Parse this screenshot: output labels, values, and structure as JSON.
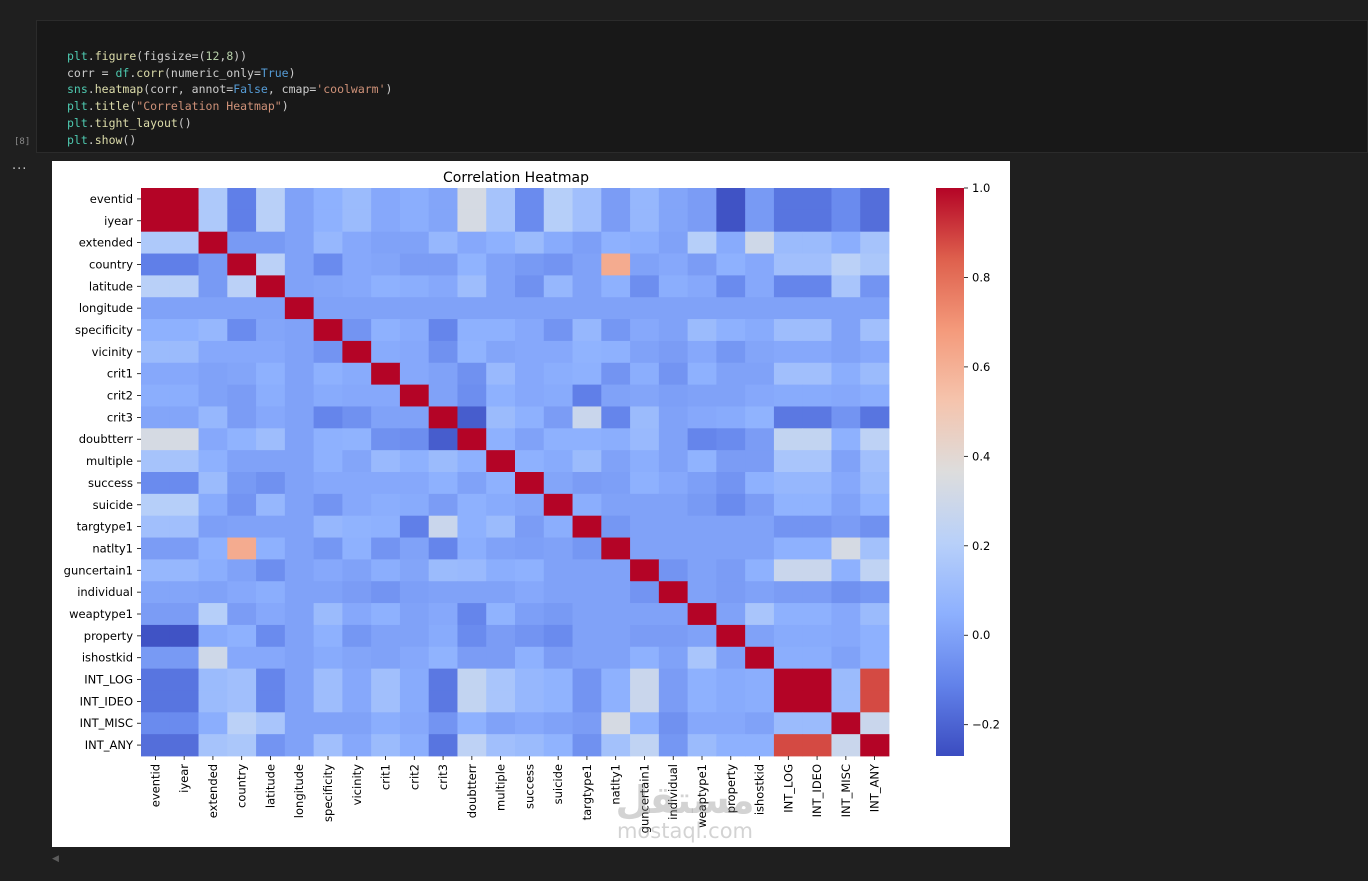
{
  "notebook": {
    "execution_count": "[8]",
    "output_marker": "...",
    "code_lines": [
      "plt.figure(figsize=(12,8))",
      "corr = df.corr(numeric_only=True)",
      "sns.heatmap(corr, annot=False, cmap='coolwarm')",
      "plt.title(\"Correlation Heatmap\")",
      "plt.tight_layout()",
      "plt.show()"
    ]
  },
  "watermark": {
    "logo": "مستقل",
    "text": "mostaql.com"
  },
  "chart_data": {
    "type": "heatmap",
    "title": "Correlation Heatmap",
    "xlabel": "",
    "ylabel": "",
    "colormap": "coolwarm",
    "colorbar": {
      "range": [
        -0.27,
        1.0
      ],
      "ticks": [
        1.0,
        0.8,
        0.6,
        0.4,
        0.2,
        0.0,
        -0.2
      ],
      "tick_labels": [
        "1.0",
        "0.8",
        "0.6",
        "0.4",
        "0.2",
        "0.0",
        "−0.2"
      ]
    },
    "labels": [
      "eventid",
      "iyear",
      "extended",
      "country",
      "latitude",
      "longitude",
      "specificity",
      "vicinity",
      "crit1",
      "crit2",
      "crit3",
      "doubtterr",
      "multiple",
      "success",
      "suicide",
      "targtype1",
      "natlty1",
      "guncertain1",
      "individual",
      "weaptype1",
      "property",
      "ishostkid",
      "INT_LOG",
      "INT_IDEO",
      "INT_MISC",
      "INT_ANY"
    ],
    "matrix": [
      [
        1.0,
        1.0,
        0.17,
        -0.12,
        0.21,
        0.0,
        0.05,
        0.1,
        0.02,
        0.04,
        0.01,
        0.33,
        0.14,
        -0.08,
        0.2,
        0.12,
        -0.02,
        0.08,
        0.01,
        -0.02,
        -0.25,
        -0.03,
        -0.15,
        -0.15,
        -0.08,
        -0.17
      ],
      [
        1.0,
        1.0,
        0.17,
        -0.12,
        0.21,
        0.0,
        0.05,
        0.1,
        0.02,
        0.04,
        0.01,
        0.33,
        0.14,
        -0.08,
        0.2,
        0.12,
        -0.02,
        0.08,
        0.01,
        -0.02,
        -0.25,
        -0.03,
        -0.15,
        -0.15,
        -0.08,
        -0.17
      ],
      [
        0.17,
        0.17,
        1.0,
        -0.03,
        -0.03,
        0.0,
        0.08,
        0.02,
        0.0,
        0.0,
        0.08,
        0.02,
        0.05,
        0.1,
        0.03,
        -0.01,
        0.05,
        0.04,
        0.0,
        0.2,
        0.03,
        0.3,
        0.1,
        0.1,
        0.04,
        0.14
      ],
      [
        -0.12,
        -0.12,
        -0.03,
        1.0,
        0.22,
        0.0,
        -0.08,
        0.02,
        0.01,
        -0.02,
        -0.02,
        0.06,
        0.0,
        -0.03,
        -0.05,
        0.0,
        0.62,
        0.0,
        0.02,
        -0.02,
        0.05,
        0.02,
        0.12,
        0.12,
        0.22,
        0.16
      ],
      [
        0.21,
        0.21,
        -0.03,
        0.22,
        1.0,
        0.0,
        0.01,
        0.02,
        0.05,
        0.04,
        0.02,
        0.11,
        0.0,
        -0.06,
        0.08,
        0.0,
        0.05,
        -0.07,
        0.04,
        0.02,
        -0.08,
        0.02,
        -0.1,
        -0.1,
        0.15,
        -0.05
      ],
      [
        0.0,
        0.0,
        0.0,
        0.0,
        0.0,
        1.0,
        0.0,
        0.0,
        0.0,
        0.0,
        0.0,
        0.0,
        0.0,
        0.0,
        0.0,
        0.0,
        0.0,
        0.0,
        0.0,
        0.0,
        0.0,
        0.0,
        0.0,
        0.0,
        0.0,
        0.0
      ],
      [
        0.05,
        0.05,
        0.08,
        -0.08,
        0.01,
        0.0,
        1.0,
        -0.05,
        0.05,
        0.03,
        -0.1,
        0.05,
        0.05,
        0.02,
        -0.05,
        0.08,
        -0.04,
        0.02,
        0.0,
        0.1,
        0.05,
        0.03,
        0.11,
        0.11,
        0.0,
        0.12
      ],
      [
        0.1,
        0.1,
        0.02,
        0.02,
        0.02,
        0.0,
        -0.05,
        1.0,
        0.03,
        0.02,
        -0.06,
        0.06,
        0.01,
        0.02,
        0.02,
        0.06,
        0.05,
        0.0,
        -0.02,
        0.02,
        -0.04,
        0.01,
        0.02,
        0.02,
        0.0,
        0.02
      ],
      [
        0.02,
        0.02,
        0.0,
        0.01,
        0.05,
        0.0,
        0.05,
        0.03,
        1.0,
        0.02,
        0.0,
        -0.06,
        0.09,
        0.02,
        0.04,
        0.05,
        -0.05,
        0.04,
        -0.05,
        0.05,
        0.0,
        0.0,
        0.12,
        0.12,
        0.04,
        0.1
      ],
      [
        0.04,
        0.04,
        0.0,
        -0.02,
        0.04,
        0.0,
        0.03,
        0.02,
        0.02,
        1.0,
        0.0,
        -0.07,
        0.05,
        0.02,
        0.03,
        -0.12,
        0.0,
        0.01,
        -0.01,
        0.0,
        0.0,
        0.02,
        0.03,
        0.03,
        0.02,
        0.04
      ],
      [
        0.01,
        0.01,
        0.08,
        -0.02,
        0.02,
        0.0,
        -0.1,
        -0.06,
        0.0,
        0.0,
        1.0,
        -0.22,
        0.1,
        0.05,
        -0.02,
        0.28,
        -0.1,
        0.1,
        0.0,
        0.02,
        0.03,
        0.06,
        -0.14,
        -0.14,
        -0.05,
        -0.15
      ],
      [
        0.33,
        0.33,
        0.02,
        0.06,
        0.11,
        0.0,
        0.05,
        0.06,
        -0.06,
        -0.07,
        -0.22,
        1.0,
        0.05,
        0.0,
        0.05,
        0.05,
        0.04,
        0.09,
        0.0,
        -0.1,
        -0.08,
        -0.02,
        0.25,
        0.25,
        0.05,
        0.23
      ],
      [
        0.14,
        0.14,
        0.05,
        0.0,
        0.0,
        0.0,
        0.05,
        0.01,
        0.09,
        0.05,
        0.1,
        0.05,
        1.0,
        0.05,
        0.03,
        0.1,
        0.0,
        0.04,
        0.0,
        0.06,
        -0.02,
        -0.02,
        0.15,
        0.15,
        0.0,
        0.12
      ],
      [
        -0.08,
        -0.08,
        0.1,
        -0.03,
        -0.06,
        0.0,
        0.02,
        0.02,
        0.02,
        0.02,
        0.05,
        0.0,
        0.05,
        1.0,
        0.01,
        -0.02,
        -0.01,
        0.05,
        0.02,
        -0.01,
        -0.05,
        0.05,
        0.08,
        0.08,
        0.02,
        0.1
      ],
      [
        0.2,
        0.2,
        0.03,
        -0.05,
        0.08,
        0.0,
        -0.05,
        0.02,
        0.04,
        0.03,
        -0.02,
        0.05,
        0.03,
        0.01,
        1.0,
        0.04,
        0.0,
        0.0,
        0.0,
        -0.03,
        -0.08,
        -0.02,
        0.06,
        0.06,
        0.0,
        0.06
      ],
      [
        0.12,
        0.12,
        -0.01,
        0.0,
        0.0,
        0.0,
        0.08,
        0.06,
        0.05,
        -0.12,
        0.28,
        0.05,
        0.1,
        -0.02,
        0.04,
        1.0,
        -0.04,
        0.0,
        0.0,
        0.0,
        0.0,
        0.0,
        -0.05,
        -0.05,
        -0.02,
        -0.06
      ],
      [
        -0.02,
        -0.02,
        0.05,
        0.62,
        0.05,
        0.0,
        -0.04,
        0.05,
        -0.05,
        0.0,
        -0.1,
        0.04,
        0.0,
        -0.01,
        0.0,
        -0.04,
        1.0,
        0.0,
        0.0,
        0.0,
        0.0,
        0.0,
        0.05,
        0.05,
        0.33,
        0.13
      ],
      [
        0.08,
        0.08,
        0.04,
        0.0,
        -0.07,
        0.0,
        0.02,
        0.0,
        0.04,
        0.01,
        0.1,
        0.09,
        0.04,
        0.05,
        0.0,
        0.0,
        0.0,
        1.0,
        -0.05,
        0.0,
        -0.02,
        0.05,
        0.28,
        0.28,
        0.05,
        0.24
      ],
      [
        0.01,
        0.01,
        0.0,
        0.02,
        0.04,
        0.0,
        0.0,
        -0.02,
        -0.05,
        -0.01,
        0.0,
        0.0,
        0.0,
        0.02,
        0.0,
        0.0,
        0.0,
        -0.05,
        1.0,
        0.0,
        -0.02,
        0.0,
        -0.02,
        -0.02,
        -0.06,
        -0.04
      ],
      [
        -0.02,
        -0.02,
        0.2,
        -0.02,
        0.02,
        0.0,
        0.1,
        0.02,
        0.05,
        0.0,
        0.02,
        -0.1,
        0.06,
        -0.01,
        -0.03,
        0.0,
        0.0,
        0.0,
        0.0,
        1.0,
        0.0,
        0.15,
        0.05,
        0.05,
        0.02,
        0.1
      ],
      [
        -0.25,
        -0.25,
        0.03,
        0.05,
        -0.08,
        0.0,
        0.05,
        -0.04,
        0.0,
        0.0,
        0.03,
        -0.08,
        -0.02,
        -0.05,
        -0.08,
        0.0,
        0.0,
        -0.02,
        -0.02,
        0.0,
        1.0,
        0.0,
        0.03,
        0.03,
        0.02,
        0.05
      ],
      [
        -0.03,
        -0.03,
        0.3,
        0.02,
        0.02,
        0.0,
        0.03,
        0.01,
        0.0,
        0.02,
        0.06,
        -0.02,
        -0.02,
        0.05,
        -0.02,
        0.0,
        0.0,
        0.05,
        0.0,
        0.15,
        0.0,
        1.0,
        0.04,
        0.04,
        0.0,
        0.05
      ],
      [
        -0.15,
        -0.15,
        0.1,
        0.12,
        -0.1,
        0.0,
        0.11,
        0.02,
        0.12,
        0.03,
        -0.14,
        0.25,
        0.15,
        0.08,
        0.06,
        -0.05,
        0.05,
        0.28,
        -0.02,
        0.05,
        0.03,
        0.04,
        1.0,
        1.0,
        0.1,
        0.88
      ],
      [
        -0.15,
        -0.15,
        0.1,
        0.12,
        -0.1,
        0.0,
        0.11,
        0.02,
        0.12,
        0.03,
        -0.14,
        0.25,
        0.15,
        0.08,
        0.06,
        -0.05,
        0.05,
        0.28,
        -0.02,
        0.05,
        0.03,
        0.04,
        1.0,
        1.0,
        0.1,
        0.88
      ],
      [
        -0.08,
        -0.08,
        0.04,
        0.22,
        0.15,
        0.0,
        0.0,
        0.0,
        0.04,
        0.02,
        -0.05,
        0.05,
        0.0,
        0.02,
        0.0,
        -0.02,
        0.33,
        0.05,
        -0.06,
        0.02,
        0.02,
        0.0,
        0.1,
        0.1,
        1.0,
        0.28
      ],
      [
        -0.17,
        -0.17,
        0.14,
        0.16,
        -0.05,
        0.0,
        0.12,
        0.02,
        0.1,
        0.04,
        -0.15,
        0.23,
        0.12,
        0.1,
        0.06,
        -0.06,
        0.13,
        0.24,
        -0.04,
        0.1,
        0.05,
        0.05,
        0.88,
        0.88,
        0.28,
        1.0
      ]
    ]
  }
}
